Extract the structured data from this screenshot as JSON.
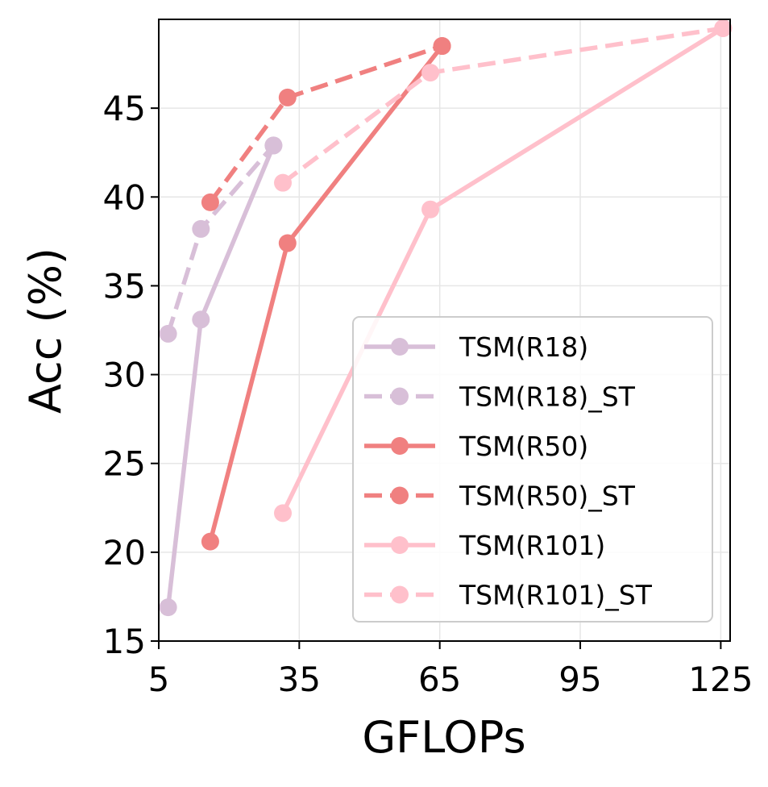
{
  "chart_data": {
    "type": "line",
    "title": "",
    "xlabel": "GFLOPs",
    "ylabel": "Acc (%)",
    "xlim": [
      5,
      127
    ],
    "ylim": [
      15,
      50
    ],
    "xticks": [
      5,
      35,
      65,
      95,
      125
    ],
    "yticks": [
      15,
      20,
      25,
      30,
      35,
      40,
      45
    ],
    "grid": true,
    "legend_position": "lower-right",
    "series": [
      {
        "name": "TSM(R18)",
        "style": "solid",
        "color": "#d8bfd8",
        "x": [
          7.0,
          14.0,
          29.5
        ],
        "y": [
          16.9,
          33.1,
          42.9
        ]
      },
      {
        "name": "TSM(R18)_ST",
        "style": "dashed",
        "color": "#d8bfd8",
        "x": [
          7.0,
          14.0,
          29.5
        ],
        "y": [
          32.3,
          38.2,
          42.9
        ]
      },
      {
        "name": "TSM(R50)",
        "style": "solid",
        "color": "#f08080",
        "x": [
          16.0,
          32.5,
          65.5
        ],
        "y": [
          20.6,
          37.4,
          48.5
        ]
      },
      {
        "name": "TSM(R50)_ST",
        "style": "dashed",
        "color": "#f08080",
        "x": [
          16.0,
          32.5,
          65.5
        ],
        "y": [
          39.7,
          45.6,
          48.5
        ]
      },
      {
        "name": "TSM(R101)",
        "style": "solid",
        "color": "#ffc0cb",
        "x": [
          31.5,
          63.0,
          125.5
        ],
        "y": [
          22.2,
          39.3,
          49.5
        ]
      },
      {
        "name": "TSM(R101)_ST",
        "style": "dashed",
        "color": "#ffc0cb",
        "x": [
          31.5,
          63.0,
          125.5
        ],
        "y": [
          40.8,
          47.0,
          49.5
        ]
      }
    ]
  }
}
